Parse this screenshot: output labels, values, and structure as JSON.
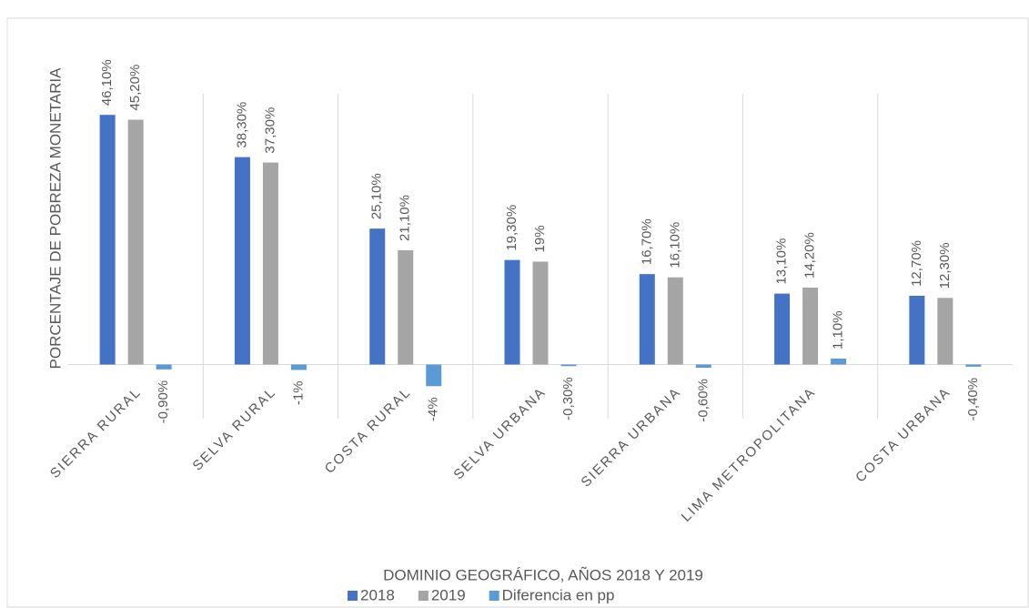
{
  "chart_data": {
    "type": "bar",
    "y_axis_title": "PORCENTAJE DE POBREZA MONETARIA",
    "x_axis_title": "DOMINIO GEOGRÁFICO, AÑOS 2018 Y 2019",
    "categories": [
      "SIERRA RURAL",
      "SELVA RURAL",
      "COSTA RURAL",
      "SELVA URBANA",
      "SIERRA URBANA",
      "LIMA METROPOLITANA",
      "COSTA URBANA"
    ],
    "series": [
      {
        "name": "2018",
        "color": "#4472c4",
        "values": [
          46.1,
          38.3,
          25.1,
          19.3,
          16.7,
          13.1,
          12.7
        ],
        "value_labels": [
          "46,10%",
          "38,30%",
          "25,10%",
          "19,30%",
          "16,70%",
          "13,10%",
          "12,70%"
        ]
      },
      {
        "name": "2019",
        "color": "#a5a5a5",
        "values": [
          45.2,
          37.3,
          21.1,
          19,
          16.1,
          14.2,
          12.3
        ],
        "value_labels": [
          "45,20%",
          "37,30%",
          "21,10%",
          "19%",
          "16,10%",
          "14,20%",
          "12,30%"
        ]
      },
      {
        "name": "Diferencia en pp",
        "color": "#5b9bd5",
        "values": [
          -0.9,
          -1,
          -4,
          -0.3,
          -0.6,
          1.1,
          -0.4
        ],
        "value_labels": [
          "-0,90%",
          "-1%",
          "-4%",
          "-0,30%",
          "-0,60%",
          "1,10%",
          "-0,40%"
        ]
      }
    ],
    "ylim": [
      -10,
      50
    ],
    "legend": "bottom"
  }
}
